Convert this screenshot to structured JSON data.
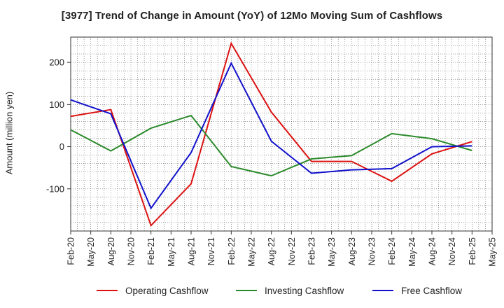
{
  "chart_data": {
    "type": "line",
    "title": "[3977]  Trend of Change in Amount (YoY) of 12Mo Moving Sum of Cashflows",
    "ylabel": "Amount (million yen)",
    "xlabel": "",
    "ylim": [
      -200,
      260
    ],
    "yticks": [
      -100,
      0,
      100,
      200
    ],
    "grid": true,
    "legend_position": "bottom",
    "categories": [
      "Feb-20",
      "May-20",
      "Aug-20",
      "Nov-20",
      "Feb-21",
      "May-21",
      "Aug-21",
      "Nov-21",
      "Feb-22",
      "May-22",
      "Aug-22",
      "Nov-22",
      "Feb-23",
      "May-23",
      "Aug-23",
      "Nov-23",
      "Feb-24",
      "May-24",
      "Aug-24",
      "Nov-24",
      "Feb-25",
      "May-25"
    ],
    "series": [
      {
        "name": "Operating Cashflow",
        "color": "#dd1111",
        "x": [
          "Feb-20",
          "Aug-20",
          "Feb-21",
          "Aug-21",
          "Feb-22",
          "Aug-22",
          "Feb-23",
          "Aug-23",
          "Feb-24",
          "Aug-24",
          "Feb-25"
        ],
        "values": [
          72,
          88,
          -187,
          -88,
          245,
          82,
          -35,
          -35,
          -82,
          -17,
          12
        ]
      },
      {
        "name": "Investing Cashflow",
        "color": "#2b8a2b",
        "x": [
          "Feb-20",
          "Aug-20",
          "Feb-21",
          "Aug-21",
          "Feb-22",
          "Aug-22",
          "Feb-23",
          "Aug-23",
          "Feb-24",
          "Aug-24",
          "Feb-25"
        ],
        "values": [
          40,
          -10,
          44,
          74,
          -47,
          -69,
          -29,
          -21,
          31,
          19,
          -9
        ]
      },
      {
        "name": "Free Cashflow",
        "color": "#1111cc",
        "x": [
          "Feb-20",
          "Aug-20",
          "Feb-21",
          "Aug-21",
          "Feb-22",
          "Aug-22",
          "Feb-23",
          "Aug-23",
          "Feb-24",
          "Aug-24",
          "Feb-25"
        ],
        "values": [
          111,
          78,
          -146,
          -14,
          198,
          13,
          -63,
          -55,
          -52,
          0,
          2
        ]
      }
    ]
  }
}
